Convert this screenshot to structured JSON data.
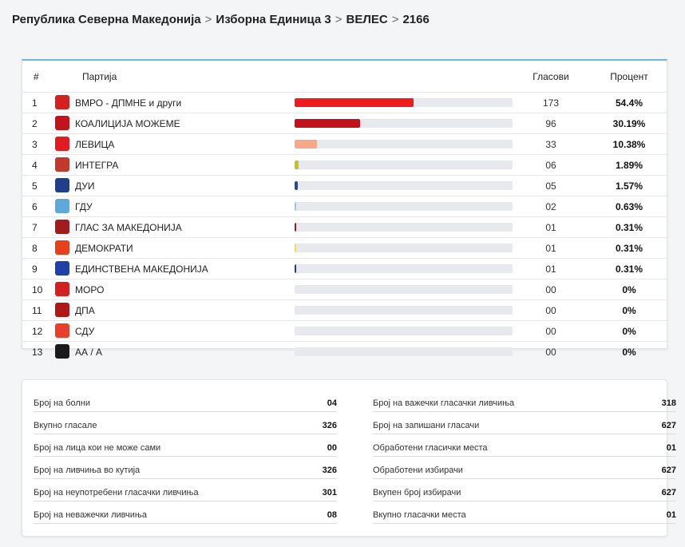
{
  "breadcrumb": {
    "items": [
      "Република Северна Македонија",
      "Изборна Единица 3",
      "ВЕЛЕС",
      "2166"
    ],
    "separator": ">"
  },
  "table": {
    "headers": {
      "num": "#",
      "party": "Партија",
      "votes": "Гласови",
      "percent": "Процент"
    },
    "rows": [
      {
        "num": "1",
        "party": "ВМРО - ДПМНЕ и други",
        "votes": "173",
        "percent": "54.4%",
        "share": 54.4,
        "color": "#ee1c1c",
        "logo": "vmro-logo",
        "logo_bg": "#d32020"
      },
      {
        "num": "2",
        "party": "КОАЛИЦИЈА МОЖЕМЕ",
        "votes": "96",
        "percent": "30.19%",
        "share": 30.19,
        "color": "#c3121b",
        "logo": "sdsm-logo",
        "logo_bg": "#c3121b"
      },
      {
        "num": "3",
        "party": "ЛЕВИЦА",
        "votes": "33",
        "percent": "10.38%",
        "share": 10.38,
        "color": "#f7a888",
        "logo": "levica-logo",
        "logo_bg": "#e01b22"
      },
      {
        "num": "4",
        "party": "ИНТЕГРА",
        "votes": "06",
        "percent": "1.89%",
        "share": 1.89,
        "color": "#c8c21c",
        "logo": "integra-logo",
        "logo_bg": "#c0392b"
      },
      {
        "num": "5",
        "party": "ДУИ",
        "votes": "05",
        "percent": "1.57%",
        "share": 1.57,
        "color": "#2b4a8c",
        "logo": "dui-logo",
        "logo_bg": "#1f3f8a"
      },
      {
        "num": "6",
        "party": "ГДУ",
        "votes": "02",
        "percent": "0.63%",
        "share": 0.63,
        "color": "#9cc7e4",
        "logo": "gdu-logo",
        "logo_bg": "#5fa8dc"
      },
      {
        "num": "7",
        "party": "ГЛАС ЗА МАКЕДОНИЈА",
        "votes": "01",
        "percent": "0.31%",
        "share": 0.31,
        "color": "#a11c1c",
        "logo": "glas-logo",
        "logo_bg": "#a11c1c"
      },
      {
        "num": "8",
        "party": "ДЕМОКРАТИ",
        "votes": "01",
        "percent": "0.31%",
        "share": 0.31,
        "color": "#f2e04a",
        "logo": "demokrati-logo",
        "logo_bg": "#e8401c"
      },
      {
        "num": "9",
        "party": "ЕДИНСТВЕНА МАКЕДОНИЈА",
        "votes": "01",
        "percent": "0.31%",
        "share": 0.31,
        "color": "#24359c",
        "logo": "edinstvena-logo",
        "logo_bg": "#2241a8"
      },
      {
        "num": "10",
        "party": "МОРО",
        "votes": "00",
        "percent": "0%",
        "share": 0,
        "color": "#d32020",
        "logo": "moro-logo",
        "logo_bg": "#d32020"
      },
      {
        "num": "11",
        "party": "ДПА",
        "votes": "00",
        "percent": "0%",
        "share": 0,
        "color": "#b01818",
        "logo": "dpa-logo",
        "logo_bg": "#b01818"
      },
      {
        "num": "12",
        "party": "СДУ",
        "votes": "00",
        "percent": "0%",
        "share": 0,
        "color": "#e8402a",
        "logo": "sdu-logo",
        "logo_bg": "#e8402a"
      },
      {
        "num": "13",
        "party": "АА / А",
        "votes": "00",
        "percent": "0%",
        "share": 0,
        "color": "#f0a020",
        "logo": "aa-logo",
        "logo_bg": "#1a1a1a"
      }
    ]
  },
  "stats": {
    "left": [
      {
        "label": "Број на болни",
        "value": "04"
      },
      {
        "label": "Вкупно гласале",
        "value": "326"
      },
      {
        "label": "Број на лица кои не може сами",
        "value": "00"
      },
      {
        "label": "Број на ливчиња во кутија",
        "value": "326"
      },
      {
        "label": "Број на неупотребени гласачки ливчиња",
        "value": "301"
      },
      {
        "label": "Број на неважечки ливчиња",
        "value": "08"
      }
    ],
    "right": [
      {
        "label": "Број на важечки гласачки ливчиња",
        "value": "318"
      },
      {
        "label": "Број на запишани гласачи",
        "value": "627"
      },
      {
        "label": "Обработени гласички места",
        "value": "01"
      },
      {
        "label": "Обработени избирачи",
        "value": "627"
      },
      {
        "label": "Вкупен број избирачи",
        "value": "627"
      },
      {
        "label": "Вкупно гласачки места",
        "value": "01"
      }
    ]
  }
}
